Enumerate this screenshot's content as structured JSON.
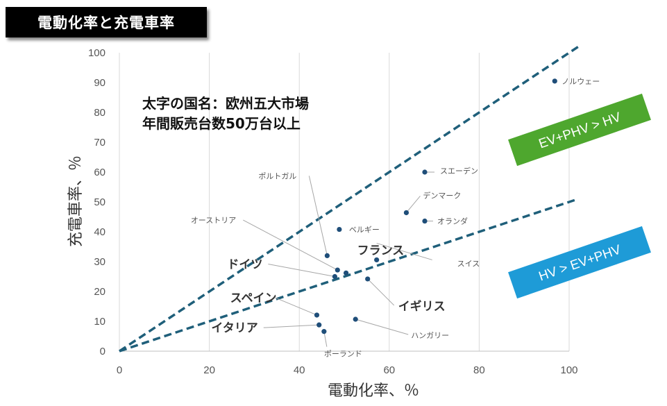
{
  "title": "電動化率と充電車率",
  "note_lines": [
    "太字の国名：欧州五大市場",
    "年間販売台数50万台以上"
  ],
  "bands": {
    "upper": {
      "label": "EV+PHV > HV",
      "color": "#4ea72e"
    },
    "lower": {
      "label": "HV > EV+PHV",
      "color": "#1e9bd7"
    }
  },
  "chart_data": {
    "type": "scatter",
    "xlabel": "電動化率、％",
    "ylabel": "充電車率、％",
    "xlim": [
      0,
      100
    ],
    "ylim": [
      0,
      100
    ],
    "x_ticks": [
      0,
      20,
      40,
      60,
      80,
      100
    ],
    "y_ticks": [
      0,
      10,
      20,
      30,
      40,
      50,
      60,
      70,
      80,
      90,
      100
    ],
    "grid": "vertical",
    "marker_color": "#1f4e79",
    "reference_lines": [
      {
        "slope": 1.0,
        "color": "#1f5f7a"
      },
      {
        "slope": 0.5,
        "color": "#1f5f7a"
      }
    ],
    "points": [
      {
        "name": "ノルウェー",
        "x": 96.8,
        "y": 90.5,
        "bold": false
      },
      {
        "name": "スエーデン",
        "x": 67.9,
        "y": 60.0,
        "bold": false
      },
      {
        "name": "デンマーク",
        "x": 63.8,
        "y": 46.4,
        "bold": false
      },
      {
        "name": "オランダ",
        "x": 67.9,
        "y": 43.6,
        "bold": false
      },
      {
        "name": "ベルギー",
        "x": 48.9,
        "y": 40.8,
        "bold": false
      },
      {
        "name": "ポルトガル",
        "x": 46.2,
        "y": 32.0,
        "bold": false
      },
      {
        "name": "オーストリア",
        "x": 48.5,
        "y": 27.2,
        "bold": false
      },
      {
        "name": "フランス",
        "x": 50.4,
        "y": 26.2,
        "bold": true
      },
      {
        "name": "ドイツ",
        "x": 47.9,
        "y": 25.0,
        "bold": true
      },
      {
        "name": "スイス",
        "x": 57.2,
        "y": 30.6,
        "bold": false
      },
      {
        "name": "イギリス",
        "x": 55.2,
        "y": 24.2,
        "bold": true
      },
      {
        "name": "スペイン",
        "x": 43.9,
        "y": 12.1,
        "bold": true
      },
      {
        "name": "イタリア",
        "x": 44.4,
        "y": 8.8,
        "bold": true
      },
      {
        "name": "ポーランド",
        "x": 45.5,
        "y": 6.6,
        "bold": false
      },
      {
        "name": "ハンガリー",
        "x": 52.5,
        "y": 10.7,
        "bold": false
      }
    ]
  }
}
